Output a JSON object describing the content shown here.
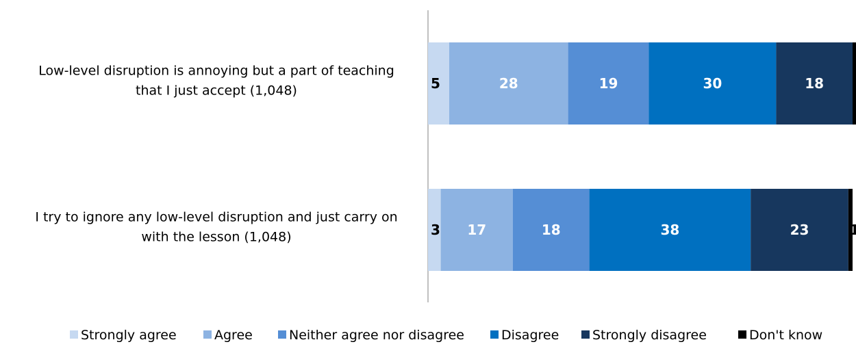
{
  "chart_data": {
    "type": "bar",
    "orientation": "horizontal",
    "stacked": true,
    "categories": [
      "Low-level disruption is annoying but a part of teaching that I just accept (1,048)",
      "I try to ignore any low-level disruption and just carry on with the lesson (1,048)"
    ],
    "category_lines": [
      [
        "Low-level disruption is annoying but a part of teaching",
        "that I just accept (1,048)"
      ],
      [
        "I try to ignore any low-level disruption and just carry on",
        "with the lesson (1,048)"
      ]
    ],
    "series": [
      {
        "name": "Strongly agree",
        "color": "#c6d9f1",
        "label_color": "#000000",
        "values": [
          5,
          3
        ]
      },
      {
        "name": "Agree",
        "color": "#8db3e2",
        "label_color": "#ffffff",
        "values": [
          28,
          17
        ]
      },
      {
        "name": "Neither agree nor disagree",
        "color": "#558ed5",
        "label_color": "#ffffff",
        "values": [
          19,
          18
        ]
      },
      {
        "name": "Disagree",
        "color": "#0070c0",
        "label_color": "#ffffff",
        "values": [
          30,
          38
        ]
      },
      {
        "name": "Strongly disagree",
        "color": "#17375e",
        "label_color": "#ffffff",
        "values": [
          18,
          23
        ]
      },
      {
        "name": "Don't know",
        "color": "#000000",
        "label_color": "#000000",
        "values": [
          1,
          1
        ]
      }
    ],
    "xlim": [
      0,
      100
    ],
    "grid": false,
    "legend_position": "bottom"
  }
}
